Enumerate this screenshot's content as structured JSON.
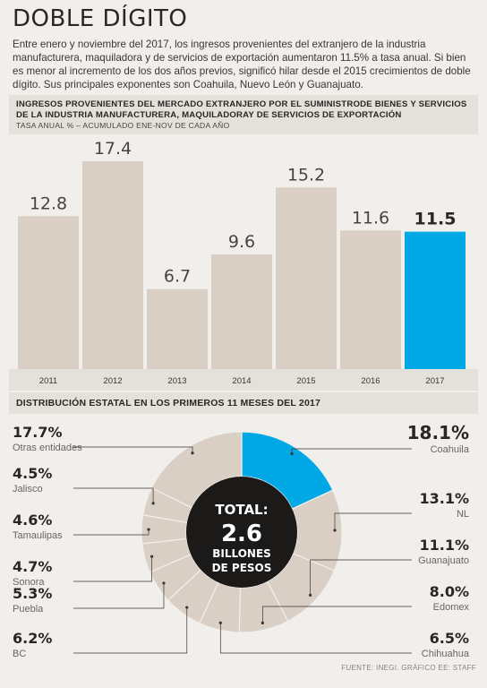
{
  "title": "DOBLE DÍGITO",
  "intro": "Entre enero y noviembre del 2017, los ingresos provenientes del extranjero de la industria manufacturera, maquiladora y de servicios de exportación aumentaron 11.5% a tasa anual. Si bien es menor al incremento de los dos años previos, significó hilar desde el 2015 crecimientos de doble dígito. Sus principales exponentes son Coahuila, Nuevo León y Guanajuato.",
  "colors": {
    "bar": "#d9cfc4",
    "highlight": "#00a8e6",
    "donut": "#d9cfc4",
    "center": "#1c1a19",
    "background": "#f1efeb"
  },
  "chart_data": [
    {
      "type": "bar",
      "title": "INGRESOS PROVENIENTES DEL MERCADO EXTRANJERO POR EL SUMINISTRODE BIENES Y SERVICIOS DE LA INDUSTRIA MANUFACTURERA, MAQUILADORAY DE SERVICIOS DE EXPORTACIÓN",
      "subtitle": "TASA ANUAL % – ACUMULADO ENE-NOV DE CADA AÑO",
      "categories": [
        "2011",
        "2012",
        "2013",
        "2014",
        "2015",
        "2016",
        "2017"
      ],
      "values": [
        12.8,
        17.4,
        6.7,
        9.6,
        15.2,
        11.6,
        11.5
      ],
      "value_labels": [
        "12.8",
        "17.4",
        "6.7",
        "9.6",
        "15.2",
        "11.6",
        "11.5"
      ],
      "highlight_index": 6,
      "ylim": [
        0,
        17.4
      ],
      "grid": false
    },
    {
      "type": "pie",
      "title": "DISTRIBUCIÓN ESTATAL EN LOS PRIMEROS 11 MESES DEL 2017",
      "center": {
        "line1": "TOTAL:",
        "line2": "2.6",
        "line3": "BILLONES",
        "line4": "DE PESOS"
      },
      "slices": [
        {
          "label": "Coahuila",
          "pct_label": "18.1%",
          "value": 18.1,
          "highlight": true
        },
        {
          "label": "NL",
          "pct_label": "13.1%",
          "value": 13.1
        },
        {
          "label": "Guanajuato",
          "pct_label": "11.1%",
          "value": 11.1
        },
        {
          "label": "Edomex",
          "pct_label": "8.0%",
          "value": 8.0
        },
        {
          "label": "Chihuahua",
          "pct_label": "6.5%",
          "value": 6.5
        },
        {
          "label": "BC",
          "pct_label": "6.2%",
          "value": 6.2
        },
        {
          "label": "Puebla",
          "pct_label": "5.3%",
          "value": 5.3
        },
        {
          "label": "Sonora",
          "pct_label": "4.7%",
          "value": 4.7
        },
        {
          "label": "Tamaulipas",
          "pct_label": "4.6%",
          "value": 4.6
        },
        {
          "label": "Jalisco",
          "pct_label": "4.5%",
          "value": 4.5
        },
        {
          "label": "Otras entidades",
          "pct_label": "17.7%",
          "value": 17.7
        }
      ]
    }
  ],
  "source": "FUENTE: INEGI. GRÁFICO EE: STAFF"
}
